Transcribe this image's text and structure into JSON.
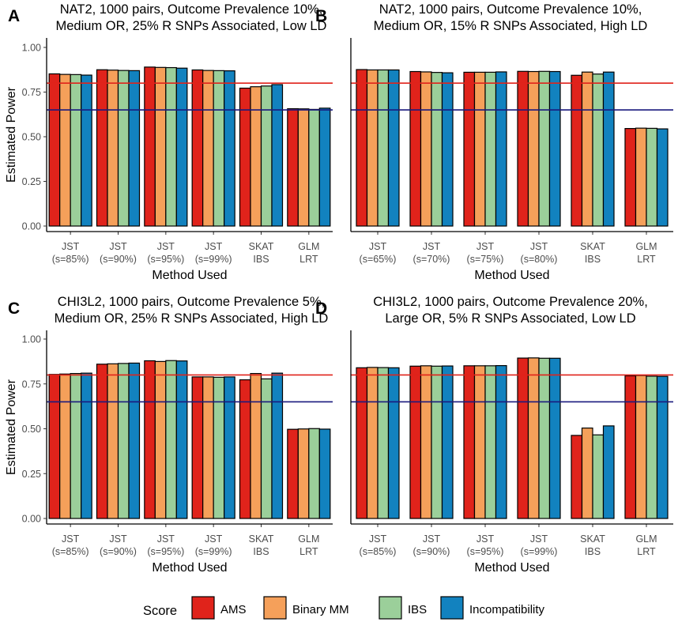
{
  "figure": {
    "legend": {
      "title": "Score",
      "items": [
        {
          "name": "AMS",
          "color": "#e0231b"
        },
        {
          "name": "Binary MM",
          "color": "#f5a05a"
        },
        {
          "name": "IBS",
          "color": "#9bcf9a"
        },
        {
          "name": "Incompatibility",
          "color": "#1282bf"
        }
      ]
    }
  },
  "chart_data": [
    {
      "type": "bar",
      "panel": "A",
      "title": [
        "NAT2, 1000 pairs, Outcome Prevalence 10%,",
        "Medium OR, 25% R SNPs Associated, Low LD"
      ],
      "xlabel": "Method Used",
      "ylabel": "Estimated Power",
      "ylim": [
        0,
        1.0
      ],
      "yticks": [
        "0.00",
        "0.25",
        "0.50",
        "0.75",
        "1.00"
      ],
      "hlines": [
        {
          "y": 0.8,
          "color": "#e0231b"
        },
        {
          "y": 0.65,
          "color": "#1a1a7e"
        }
      ],
      "categories": [
        [
          "JST",
          "(s=85%)"
        ],
        [
          "JST",
          "(s=90%)"
        ],
        [
          "JST",
          "(s=95%)"
        ],
        [
          "JST",
          "(s=99%)"
        ],
        [
          "SKAT",
          "IBS"
        ],
        [
          "GLM",
          "LRT"
        ]
      ],
      "series": [
        {
          "name": "AMS",
          "values": [
            0.852,
            0.875,
            0.89,
            0.874,
            0.772,
            0.657
          ]
        },
        {
          "name": "Binary MM",
          "values": [
            0.849,
            0.873,
            0.888,
            0.871,
            0.78,
            0.656
          ]
        },
        {
          "name": "IBS",
          "values": [
            0.848,
            0.871,
            0.887,
            0.87,
            0.784,
            0.653
          ]
        },
        {
          "name": "Incompatibility",
          "values": [
            0.845,
            0.87,
            0.884,
            0.869,
            0.792,
            0.66
          ]
        }
      ]
    },
    {
      "type": "bar",
      "panel": "B",
      "title": [
        "NAT2, 1000 pairs, Outcome Prevalence 10%,",
        "Medium OR, 15% R SNPs Associated, High LD"
      ],
      "xlabel": "Method Used",
      "ylabel": "",
      "ylim": [
        0,
        1.0
      ],
      "yticks": [],
      "hlines": [
        {
          "y": 0.8,
          "color": "#e0231b"
        },
        {
          "y": 0.65,
          "color": "#1a1a7e"
        }
      ],
      "categories": [
        [
          "JST",
          "(s=65%)"
        ],
        [
          "JST",
          "(s=70%)"
        ],
        [
          "JST",
          "(s=75%)"
        ],
        [
          "JST",
          "(s=80%)"
        ],
        [
          "SKAT",
          "IBS"
        ],
        [
          "GLM",
          "LRT"
        ]
      ],
      "series": [
        {
          "name": "AMS",
          "values": [
            0.876,
            0.865,
            0.861,
            0.866,
            0.844,
            0.546
          ]
        },
        {
          "name": "Binary MM",
          "values": [
            0.874,
            0.863,
            0.861,
            0.865,
            0.862,
            0.548
          ]
        },
        {
          "name": "IBS",
          "values": [
            0.874,
            0.86,
            0.861,
            0.866,
            0.851,
            0.547
          ]
        },
        {
          "name": "Incompatibility",
          "values": [
            0.874,
            0.858,
            0.863,
            0.865,
            0.862,
            0.544
          ]
        }
      ]
    },
    {
      "type": "bar",
      "panel": "C",
      "title": [
        "CHI3L2, 1000 pairs, Outcome Prevalence 5%,",
        "Medium OR, 25% R SNPs Associated, High LD"
      ],
      "xlabel": "Method Used",
      "ylabel": "Estimated Power",
      "ylim": [
        0,
        1.0
      ],
      "yticks": [
        "0.00",
        "0.25",
        "0.50",
        "0.75",
        "1.00"
      ],
      "hlines": [
        {
          "y": 0.8,
          "color": "#e0231b"
        },
        {
          "y": 0.65,
          "color": "#1a1a7e"
        }
      ],
      "categories": [
        [
          "JST",
          "(s=85%)"
        ],
        [
          "JST",
          "(s=90%)"
        ],
        [
          "JST",
          "(s=95%)"
        ],
        [
          "JST",
          "(s=99%)"
        ],
        [
          "SKAT",
          "IBS"
        ],
        [
          "GLM",
          "LRT"
        ]
      ],
      "series": [
        {
          "name": "AMS",
          "values": [
            0.803,
            0.86,
            0.879,
            0.789,
            0.773,
            0.497
          ]
        },
        {
          "name": "Binary MM",
          "values": [
            0.805,
            0.862,
            0.875,
            0.789,
            0.808,
            0.499
          ]
        },
        {
          "name": "IBS",
          "values": [
            0.808,
            0.864,
            0.88,
            0.787,
            0.778,
            0.501
          ]
        },
        {
          "name": "Incompatibility",
          "values": [
            0.81,
            0.866,
            0.878,
            0.789,
            0.81,
            0.498
          ]
        }
      ]
    },
    {
      "type": "bar",
      "panel": "D",
      "title": [
        "CHI3L2, 1000 pairs, Outcome Prevalence 20%,",
        "Large OR, 5% R SNPs Associated, Low LD"
      ],
      "xlabel": "Method Used",
      "ylabel": "",
      "ylim": [
        0,
        1.0
      ],
      "yticks": [],
      "hlines": [
        {
          "y": 0.8,
          "color": "#e0231b"
        },
        {
          "y": 0.65,
          "color": "#1a1a7e"
        }
      ],
      "categories": [
        [
          "JST",
          "(s=85%)"
        ],
        [
          "JST",
          "(s=90%)"
        ],
        [
          "JST",
          "(s=95%)"
        ],
        [
          "JST",
          "(s=99%)"
        ],
        [
          "SKAT",
          "IBS"
        ],
        [
          "GLM",
          "LRT"
        ]
      ],
      "series": [
        {
          "name": "AMS",
          "values": [
            0.84,
            0.849,
            0.851,
            0.894,
            0.463,
            0.795
          ]
        },
        {
          "name": "Binary MM",
          "values": [
            0.842,
            0.851,
            0.851,
            0.895,
            0.504,
            0.797
          ]
        },
        {
          "name": "IBS",
          "values": [
            0.841,
            0.849,
            0.851,
            0.893,
            0.466,
            0.793
          ]
        },
        {
          "name": "Incompatibility",
          "values": [
            0.84,
            0.85,
            0.852,
            0.893,
            0.516,
            0.792
          ]
        }
      ]
    }
  ]
}
